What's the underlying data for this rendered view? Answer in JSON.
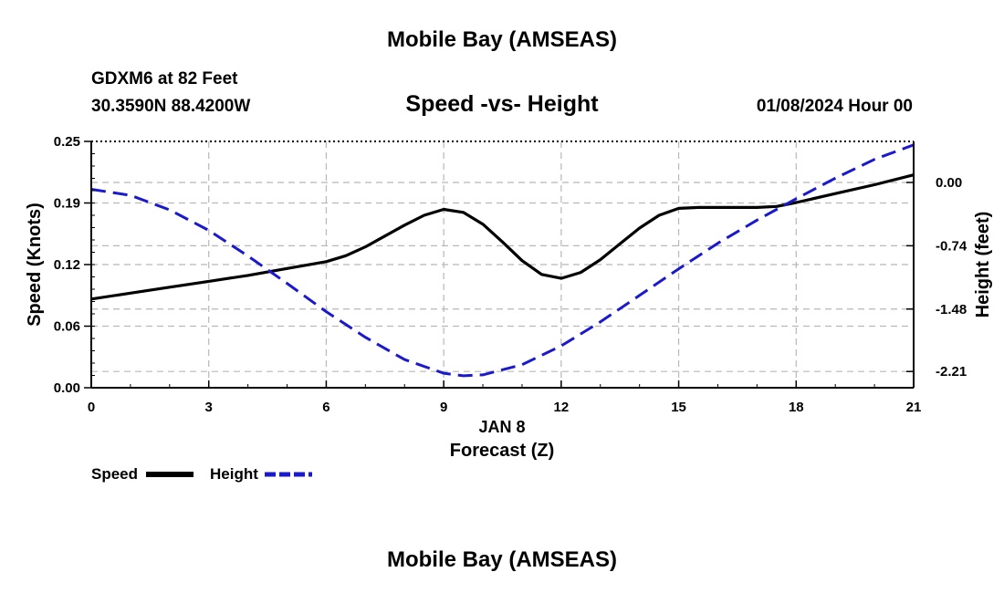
{
  "header": {
    "title": "Mobile Bay (AMSEAS)",
    "station": "GDXM6 at 82 Feet",
    "coords": "30.3590N  88.4200W",
    "subtitle": "Speed -vs- Height",
    "datetime": "01/08/2024 Hour 00"
  },
  "footer": {
    "title": "Mobile Bay (AMSEAS)"
  },
  "chart_data": {
    "type": "line",
    "xlabel": "Forecast (Z)",
    "xlabel_date": "JAN 8",
    "ylabel_left": "Speed (Knots)",
    "ylabel_right": "Height (feet)",
    "xlim": [
      0,
      21
    ],
    "ylim_left": [
      0,
      0.25
    ],
    "ylim_right": [
      -2.4,
      0.48
    ],
    "x_ticks": [
      "0",
      "3",
      "6",
      "9",
      "12",
      "15",
      "18",
      "21"
    ],
    "x_tick_values": [
      0,
      3,
      6,
      9,
      12,
      15,
      18,
      21
    ],
    "y_left_ticks": [
      "0.00",
      "0.06",
      "0.12",
      "0.19",
      "0.25"
    ],
    "y_left_tick_values": [
      0.0,
      0.0625,
      0.125,
      0.1875,
      0.25
    ],
    "y_right_ticks": [
      "0.00",
      "-0.74",
      "-1.48",
      "-2.21"
    ],
    "y_right_tick_values": [
      0.0,
      -0.74,
      -1.48,
      -2.21
    ],
    "grid": true,
    "legend_position": "bottom-left",
    "series": [
      {
        "name": "Speed",
        "axis": "left",
        "color": "#000000",
        "style": "solid",
        "x": [
          0,
          1,
          2,
          3,
          4,
          5,
          6,
          6.5,
          7,
          7.5,
          8,
          8.5,
          9,
          9.5,
          10,
          10.5,
          11,
          11.5,
          12,
          12.5,
          13,
          13.5,
          14,
          14.5,
          15,
          15.5,
          16,
          16.5,
          17,
          17.5,
          18,
          19,
          20,
          21
        ],
        "values": [
          0.09,
          0.096,
          0.102,
          0.108,
          0.114,
          0.121,
          0.128,
          0.134,
          0.143,
          0.154,
          0.165,
          0.175,
          0.181,
          0.178,
          0.166,
          0.148,
          0.129,
          0.115,
          0.111,
          0.117,
          0.13,
          0.146,
          0.162,
          0.175,
          0.182,
          0.183,
          0.183,
          0.183,
          0.183,
          0.184,
          0.188,
          0.197,
          0.206,
          0.216
        ]
      },
      {
        "name": "Height",
        "axis": "right",
        "color": "#1a1acc",
        "style": "dashed",
        "x": [
          0,
          1,
          2,
          3,
          4,
          5,
          6,
          7,
          8,
          9,
          9.5,
          10,
          11,
          12,
          13,
          14,
          15,
          16,
          17,
          18,
          19,
          20,
          21
        ],
        "values": [
          -0.08,
          -0.15,
          -0.32,
          -0.56,
          -0.86,
          -1.18,
          -1.51,
          -1.81,
          -2.07,
          -2.23,
          -2.26,
          -2.25,
          -2.13,
          -1.91,
          -1.63,
          -1.32,
          -1.01,
          -0.71,
          -0.44,
          -0.19,
          0.05,
          0.27,
          0.44
        ]
      }
    ]
  }
}
